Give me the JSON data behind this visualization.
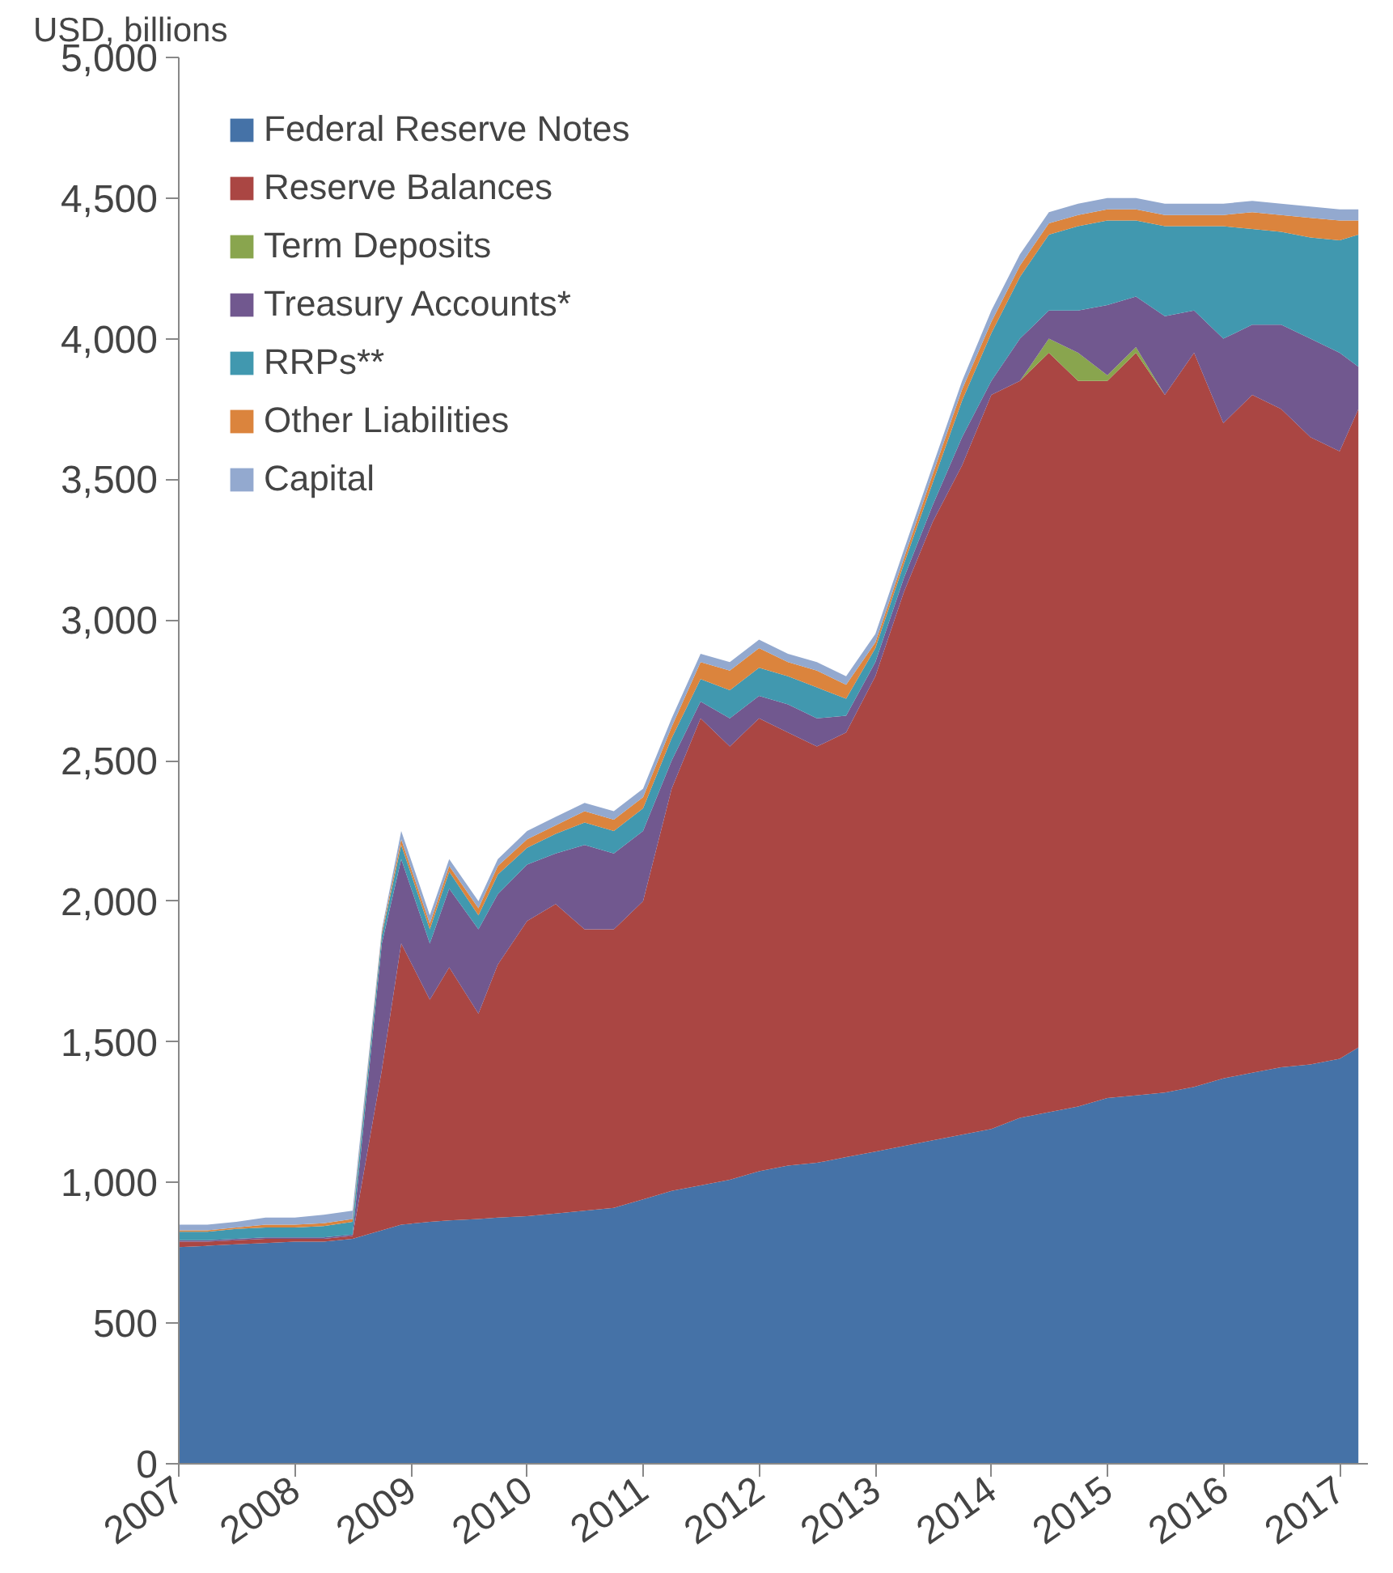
{
  "chart_data": {
    "type": "area",
    "stacked": true,
    "ylabel": "USD, billions",
    "x": [
      "2007-01",
      "2007-04",
      "2007-07",
      "2007-10",
      "2008-01",
      "2008-04",
      "2008-07",
      "2008-10",
      "2008-12",
      "2009-03",
      "2009-05",
      "2009-08",
      "2009-10",
      "2010-01",
      "2010-04",
      "2010-07",
      "2010-10",
      "2011-01",
      "2011-04",
      "2011-07",
      "2011-10",
      "2012-01",
      "2012-04",
      "2012-07",
      "2012-10",
      "2013-01",
      "2013-04",
      "2013-07",
      "2013-10",
      "2014-01",
      "2014-04",
      "2014-07",
      "2014-10",
      "2015-01",
      "2015-04",
      "2015-07",
      "2015-10",
      "2016-01",
      "2016-04",
      "2016-07",
      "2016-10",
      "2017-01",
      "2017-03"
    ],
    "series": [
      {
        "name": "Federal Reserve Notes",
        "color": "#4572a7",
        "values": [
          770,
          775,
          780,
          785,
          790,
          790,
          800,
          830,
          850,
          860,
          865,
          870,
          875,
          880,
          890,
          900,
          910,
          940,
          970,
          990,
          1010,
          1040,
          1060,
          1070,
          1090,
          1110,
          1130,
          1150,
          1170,
          1190,
          1230,
          1250,
          1270,
          1300,
          1310,
          1320,
          1340,
          1370,
          1390,
          1410,
          1420,
          1440,
          1480
        ]
      },
      {
        "name": "Reserve Balances",
        "color": "#aa4643",
        "values": [
          20,
          15,
          15,
          15,
          10,
          10,
          10,
          570,
          1000,
          790,
          900,
          730,
          900,
          1050,
          1100,
          1000,
          990,
          1060,
          1430,
          1660,
          1540,
          1610,
          1540,
          1480,
          1510,
          1690,
          1970,
          2200,
          2380,
          2610,
          2620,
          2700,
          2580,
          2550,
          2640,
          2480,
          2610,
          2330,
          2410,
          2340,
          2230,
          2160,
          2270
        ]
      },
      {
        "name": "Term Deposits",
        "color": "#89a54e",
        "values": [
          0,
          0,
          0,
          0,
          0,
          0,
          0,
          0,
          0,
          0,
          0,
          0,
          0,
          0,
          0,
          0,
          0,
          0,
          0,
          0,
          0,
          0,
          0,
          0,
          0,
          0,
          0,
          0,
          0,
          0,
          0,
          50,
          100,
          20,
          20,
          0,
          0,
          0,
          0,
          0,
          0,
          0,
          0
        ]
      },
      {
        "name": "Treasury Accounts*",
        "color": "#71588f",
        "values": [
          5,
          5,
          5,
          5,
          5,
          5,
          5,
          450,
          300,
          200,
          280,
          300,
          250,
          200,
          180,
          300,
          270,
          250,
          100,
          60,
          100,
          80,
          100,
          100,
          60,
          50,
          50,
          60,
          100,
          50,
          150,
          100,
          150,
          250,
          180,
          280,
          150,
          300,
          250,
          300,
          350,
          350,
          150
        ]
      },
      {
        "name": "RRPs**",
        "color": "#4198af",
        "values": [
          30,
          30,
          35,
          35,
          35,
          40,
          45,
          30,
          50,
          50,
          60,
          50,
          70,
          60,
          70,
          80,
          80,
          80,
          80,
          80,
          100,
          100,
          100,
          110,
          60,
          50,
          50,
          80,
          130,
          170,
          220,
          270,
          300,
          300,
          270,
          320,
          300,
          400,
          340,
          330,
          360,
          400,
          470
        ]
      },
      {
        "name": "Other Liabilities",
        "color": "#db843d",
        "values": [
          5,
          5,
          5,
          10,
          10,
          10,
          10,
          10,
          20,
          20,
          20,
          25,
          30,
          30,
          30,
          40,
          40,
          40,
          40,
          60,
          70,
          70,
          50,
          60,
          50,
          20,
          20,
          30,
          40,
          40,
          40,
          40,
          40,
          40,
          40,
          40,
          40,
          40,
          60,
          60,
          70,
          70,
          50
        ]
      },
      {
        "name": "Capital",
        "color": "#93a9cf",
        "values": [
          20,
          20,
          20,
          25,
          25,
          30,
          30,
          10,
          30,
          30,
          25,
          25,
          25,
          30,
          30,
          30,
          30,
          30,
          30,
          30,
          30,
          30,
          30,
          30,
          30,
          30,
          30,
          30,
          30,
          40,
          40,
          40,
          40,
          40,
          40,
          40,
          40,
          40,
          40,
          40,
          40,
          40,
          40
        ]
      }
    ],
    "xlim": [
      "2007-01-01",
      "2017-03-31"
    ],
    "xticks": [
      "2007",
      "2008",
      "2009",
      "2010",
      "2011",
      "2012",
      "2013",
      "2014",
      "2015",
      "2016",
      "2017"
    ],
    "ylim": [
      0,
      5000
    ],
    "yticks": [
      0,
      500,
      {
        "value": 1000,
        "label": "1,000"
      },
      {
        "value": 1500,
        "label": "1,500"
      },
      {
        "value": 2000,
        "label": "2,000"
      },
      {
        "value": 2500,
        "label": "2,500"
      },
      {
        "value": 3000,
        "label": "3,000"
      },
      {
        "value": 3500,
        "label": "3,500"
      },
      {
        "value": 4000,
        "label": "4,000"
      },
      {
        "value": 4500,
        "label": "4,500"
      },
      {
        "value": 5000,
        "label": "5,000"
      }
    ],
    "grid": false,
    "legend": "top left"
  }
}
